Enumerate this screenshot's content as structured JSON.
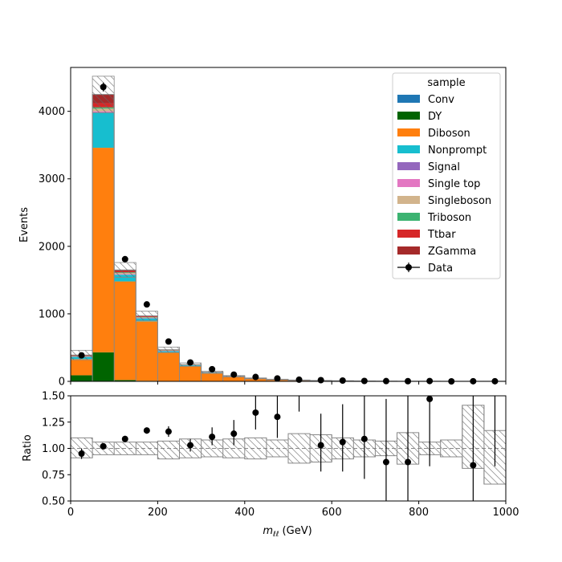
{
  "chart_data": [
    {
      "type": "bar",
      "stacked": true,
      "ylabel": "Events",
      "ylim": [
        0,
        4650
      ],
      "yticks": [
        0,
        1000,
        2000,
        3000,
        4000
      ],
      "bin_edges": [
        0,
        50,
        100,
        150,
        200,
        250,
        300,
        350,
        400,
        450,
        500,
        550,
        600,
        650,
        700,
        750,
        800,
        850,
        900,
        950,
        1000
      ],
      "legend_title": "sample",
      "legend_location": "top-right",
      "series": [
        {
          "name": "Conv",
          "color": "#1f77b4",
          "values": [
            0,
            0,
            0,
            0,
            0,
            0,
            0,
            0,
            0,
            0,
            0,
            0,
            0,
            0,
            0,
            0,
            0,
            0,
            0,
            0
          ]
        },
        {
          "name": "DY",
          "color": "#006400",
          "values": [
            90,
            430,
            20,
            8,
            4,
            2,
            1,
            1,
            0,
            0,
            0,
            0,
            0,
            0,
            0,
            0,
            0,
            0,
            0,
            0
          ]
        },
        {
          "name": "Diboson",
          "color": "#ff7f0e",
          "values": [
            240,
            3030,
            1460,
            880,
            420,
            220,
            120,
            65,
            40,
            25,
            16,
            10,
            6,
            4,
            3,
            2,
            2,
            1,
            1,
            1
          ]
        },
        {
          "name": "Nonprompt",
          "color": "#17becf",
          "values": [
            35,
            520,
            100,
            45,
            25,
            15,
            8,
            5,
            3,
            2,
            1,
            1,
            1,
            0,
            0,
            0,
            0,
            0,
            0,
            0
          ]
        },
        {
          "name": "Signal",
          "color": "#9467bd",
          "values": [
            0,
            0,
            0,
            0,
            0,
            0,
            0,
            0,
            0,
            0,
            0,
            0,
            0,
            0,
            0,
            0,
            0,
            0,
            0,
            0
          ]
        },
        {
          "name": "Single top",
          "color": "#e377c2",
          "values": [
            3,
            20,
            10,
            6,
            3,
            2,
            1,
            1,
            0,
            0,
            0,
            0,
            0,
            0,
            0,
            0,
            0,
            0,
            0,
            0
          ]
        },
        {
          "name": "Singleboson",
          "color": "#d2b48c",
          "values": [
            4,
            40,
            15,
            8,
            4,
            2,
            1,
            1,
            0,
            0,
            0,
            0,
            0,
            0,
            0,
            0,
            0,
            0,
            0,
            0
          ]
        },
        {
          "name": "Triboson",
          "color": "#3cb371",
          "values": [
            2,
            20,
            10,
            5,
            3,
            2,
            1,
            1,
            0,
            0,
            0,
            0,
            0,
            0,
            0,
            0,
            0,
            0,
            0,
            0
          ]
        },
        {
          "name": "Ttbar",
          "color": "#d62728",
          "values": [
            6,
            60,
            20,
            10,
            5,
            3,
            2,
            1,
            1,
            0,
            0,
            0,
            0,
            0,
            0,
            0,
            0,
            0,
            0,
            0
          ]
        },
        {
          "name": "ZGamma",
          "color": "#a52a2a",
          "values": [
            10,
            130,
            15,
            8,
            4,
            2,
            1,
            1,
            0,
            0,
            0,
            0,
            0,
            0,
            0,
            0,
            0,
            0,
            0,
            0
          ]
        }
      ],
      "mc_uncertainty": [
        70,
        270,
        110,
        70,
        40,
        25,
        16,
        10,
        7,
        5,
        4,
        3,
        2,
        2,
        1,
        1,
        1,
        1,
        1,
        1
      ],
      "data": {
        "name": "Data",
        "x": [
          25,
          75,
          125,
          175,
          225,
          275,
          325,
          375,
          425,
          475,
          525,
          575,
          625,
          675,
          725,
          775,
          825,
          875,
          925,
          975
        ],
        "y": [
          385,
          4360,
          1810,
          1140,
          590,
          280,
          180,
          100,
          65,
          43,
          25,
          18,
          12,
          6,
          4,
          3,
          5,
          0,
          2,
          2
        ]
      }
    },
    {
      "type": "scatter",
      "ylabel": "Ratio",
      "xlabel": "m_{ℓℓ} (GeV)",
      "xlabel_main": "m",
      "xlabel_sub": "ℓℓ",
      "xlabel_unit": " (GeV)",
      "xlim": [
        0,
        1000
      ],
      "ylim": [
        0.5,
        1.5
      ],
      "xticks": [
        0,
        200,
        400,
        600,
        800,
        1000
      ],
      "yticks": [
        "0.50",
        "0.75",
        "1.00",
        "1.25",
        "1.50"
      ],
      "reference_line": 1.0,
      "uncertainty_band": [
        [
          0.91,
          1.1
        ],
        [
          0.94,
          1.06
        ],
        [
          0.94,
          1.06
        ],
        [
          0.94,
          1.06
        ],
        [
          0.9,
          1.07
        ],
        [
          0.91,
          1.09
        ],
        [
          0.92,
          1.08
        ],
        [
          0.91,
          1.09
        ],
        [
          0.9,
          1.1
        ],
        [
          0.92,
          1.08
        ],
        [
          0.86,
          1.14
        ],
        [
          0.87,
          1.13
        ],
        [
          0.9,
          1.1
        ],
        [
          0.92,
          1.08
        ],
        [
          0.93,
          1.07
        ],
        [
          0.85,
          1.15
        ],
        [
          0.94,
          1.06
        ],
        [
          0.92,
          1.08
        ],
        [
          0.81,
          1.41
        ],
        [
          0.66,
          1.17
        ]
      ],
      "x": [
        25,
        75,
        125,
        175,
        225,
        275,
        325,
        375,
        425,
        475,
        525,
        575,
        625,
        675,
        725,
        775,
        825,
        875,
        925,
        975
      ],
      "y": [
        0.95,
        1.02,
        1.09,
        1.17,
        1.16,
        1.03,
        1.11,
        1.14,
        1.34,
        1.3,
        null,
        1.03,
        1.06,
        1.09,
        0.87,
        0.87,
        1.47,
        null,
        0.84,
        null
      ],
      "yerr_low": [
        0.05,
        0.02,
        0.03,
        0.03,
        0.05,
        0.06,
        0.08,
        0.11,
        0.16,
        0.2,
        0,
        0.25,
        0.28,
        0.38,
        0.4,
        0.4,
        0.64,
        0,
        0.4,
        0
      ],
      "yerr_high": [
        0.05,
        0.02,
        0.03,
        0.03,
        0.05,
        0.06,
        0.09,
        0.13,
        0.18,
        0.22,
        0,
        0.3,
        0.36,
        0.5,
        0.6,
        0.7,
        0.8,
        0,
        0.7,
        0
      ],
      "offscale_errorbars": [
        {
          "x": 525,
          "y_low": 1.35
        },
        {
          "x": 975,
          "y_low": 0.83
        }
      ]
    }
  ]
}
